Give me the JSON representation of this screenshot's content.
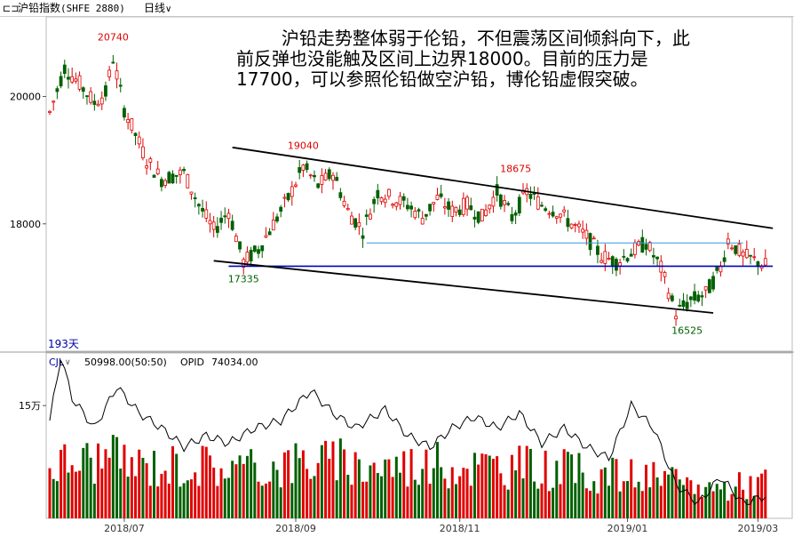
{
  "window": {
    "icon": "chart-window-icon",
    "name": "沪铅指数",
    "code": "(SHFE 2880)",
    "period": "日线",
    "period_icon": "chevron-down-icon"
  },
  "annotation": "        沪铅走势整体弱于伦铅，不但震荡区间倾斜向下，此前反弹也没能触及区间上边界18000。目前的压力是17700，可以参照伦铅做空沪铅，博伦铅虚假突破。",
  "colors": {
    "up": "#e00000",
    "down": "#006000",
    "annot_high": "#e00000",
    "annot_low": "#006000",
    "label_blue": "#0000a0",
    "support_line": "#0000c0",
    "resistance_line": "#3399dd",
    "channel": "#000000"
  },
  "chart_data": [
    {
      "type": "candlestick",
      "title": "沪铅指数(SHFE 2880)",
      "period_label": "日线",
      "count_label": "193天",
      "y_ticks": [
        20000,
        18000
      ],
      "ylim": [
        16000,
        21250
      ],
      "x_ticks": [
        "2018/07",
        "2018/09",
        "2018/11",
        "2019/01",
        "2019/03"
      ],
      "anchors": [
        {
          "i": 0,
          "v": 19750
        },
        {
          "i": 4,
          "v": 20450
        },
        {
          "i": 8,
          "v": 20200
        },
        {
          "i": 12,
          "v": 19900
        },
        {
          "i": 15,
          "v": 20050
        },
        {
          "i": 17,
          "v": 20600
        },
        {
          "i": 20,
          "v": 19800
        },
        {
          "i": 26,
          "v": 19000
        },
        {
          "i": 30,
          "v": 18700
        },
        {
          "i": 36,
          "v": 18800
        },
        {
          "i": 40,
          "v": 18300
        },
        {
          "i": 44,
          "v": 17900
        },
        {
          "i": 48,
          "v": 18200
        },
        {
          "i": 52,
          "v": 17400
        },
        {
          "i": 56,
          "v": 17600
        },
        {
          "i": 60,
          "v": 18000
        },
        {
          "i": 64,
          "v": 18400
        },
        {
          "i": 68,
          "v": 18900
        },
        {
          "i": 72,
          "v": 18600
        },
        {
          "i": 76,
          "v": 18800
        },
        {
          "i": 80,
          "v": 18200
        },
        {
          "i": 84,
          "v": 17900
        },
        {
          "i": 88,
          "v": 18500
        },
        {
          "i": 92,
          "v": 18400
        },
        {
          "i": 96,
          "v": 18300
        },
        {
          "i": 100,
          "v": 18100
        },
        {
          "i": 104,
          "v": 18400
        },
        {
          "i": 108,
          "v": 18200
        },
        {
          "i": 112,
          "v": 18300
        },
        {
          "i": 116,
          "v": 18100
        },
        {
          "i": 120,
          "v": 18500
        },
        {
          "i": 124,
          "v": 18100
        },
        {
          "i": 128,
          "v": 18500
        },
        {
          "i": 132,
          "v": 18300
        },
        {
          "i": 136,
          "v": 18200
        },
        {
          "i": 140,
          "v": 18000
        },
        {
          "i": 144,
          "v": 17800
        },
        {
          "i": 148,
          "v": 17500
        },
        {
          "i": 152,
          "v": 17400
        },
        {
          "i": 156,
          "v": 17550
        },
        {
          "i": 160,
          "v": 17700
        },
        {
          "i": 164,
          "v": 17300
        },
        {
          "i": 168,
          "v": 16600
        },
        {
          "i": 172,
          "v": 16800
        },
        {
          "i": 176,
          "v": 16900
        },
        {
          "i": 180,
          "v": 17300
        },
        {
          "i": 182,
          "v": 17750
        },
        {
          "i": 186,
          "v": 17500
        },
        {
          "i": 192,
          "v": 17350
        }
      ],
      "annotations": [
        {
          "i": 17,
          "value": 20740,
          "label": "20740",
          "kind": "high"
        },
        {
          "i": 68,
          "value": 19040,
          "label": "19040",
          "kind": "high"
        },
        {
          "i": 125,
          "value": 18675,
          "label": "18675",
          "kind": "high"
        },
        {
          "i": 52,
          "value": 17335,
          "label": "17335",
          "kind": "low"
        },
        {
          "i": 171,
          "value": 16525,
          "label": "16525",
          "kind": "low"
        }
      ],
      "support": 17335,
      "resistance": 17700,
      "channel_upper": [
        {
          "i": 49,
          "v": 19200
        },
        {
          "i": 194,
          "v": 17930
        }
      ],
      "channel_lower": [
        {
          "i": 44,
          "v": 17420
        },
        {
          "i": 178,
          "v": 16600
        }
      ]
    },
    {
      "type": "bar",
      "indicator_name": "CJL",
      "volume_value": "50998.00(50:50)",
      "opid_label": "OPID",
      "opid_value": "74034.00",
      "y_tick": "15万",
      "ylim": [
        0,
        220000
      ],
      "y_tick_value": 150000,
      "volume_anchors": [
        {
          "i": 0,
          "v": 70000
        },
        {
          "i": 5,
          "v": 75000
        },
        {
          "i": 15,
          "v": 80000
        },
        {
          "i": 25,
          "v": 70000
        },
        {
          "i": 40,
          "v": 72000
        },
        {
          "i": 55,
          "v": 65000
        },
        {
          "i": 70,
          "v": 78000
        },
        {
          "i": 85,
          "v": 70000
        },
        {
          "i": 100,
          "v": 72000
        },
        {
          "i": 115,
          "v": 70000
        },
        {
          "i": 130,
          "v": 68000
        },
        {
          "i": 145,
          "v": 60000
        },
        {
          "i": 160,
          "v": 55000
        },
        {
          "i": 170,
          "v": 45000
        },
        {
          "i": 180,
          "v": 40000
        },
        {
          "i": 192,
          "v": 50000
        }
      ],
      "opid_anchors": [
        {
          "i": 0,
          "v": 130000
        },
        {
          "i": 3,
          "v": 215000
        },
        {
          "i": 6,
          "v": 160000
        },
        {
          "i": 12,
          "v": 120000
        },
        {
          "i": 18,
          "v": 175000
        },
        {
          "i": 24,
          "v": 140000
        },
        {
          "i": 30,
          "v": 120000
        },
        {
          "i": 36,
          "v": 95000
        },
        {
          "i": 42,
          "v": 110000
        },
        {
          "i": 48,
          "v": 100000
        },
        {
          "i": 55,
          "v": 120000
        },
        {
          "i": 62,
          "v": 130000
        },
        {
          "i": 70,
          "v": 170000
        },
        {
          "i": 76,
          "v": 140000
        },
        {
          "i": 82,
          "v": 120000
        },
        {
          "i": 90,
          "v": 145000
        },
        {
          "i": 96,
          "v": 110000
        },
        {
          "i": 102,
          "v": 95000
        },
        {
          "i": 108,
          "v": 120000
        },
        {
          "i": 114,
          "v": 135000
        },
        {
          "i": 120,
          "v": 120000
        },
        {
          "i": 126,
          "v": 140000
        },
        {
          "i": 132,
          "v": 100000
        },
        {
          "i": 138,
          "v": 120000
        },
        {
          "i": 144,
          "v": 95000
        },
        {
          "i": 150,
          "v": 80000
        },
        {
          "i": 156,
          "v": 150000
        },
        {
          "i": 162,
          "v": 120000
        },
        {
          "i": 168,
          "v": 45000
        },
        {
          "i": 174,
          "v": 20000
        },
        {
          "i": 180,
          "v": 55000
        },
        {
          "i": 186,
          "v": 20000
        },
        {
          "i": 192,
          "v": 30000
        }
      ]
    }
  ]
}
